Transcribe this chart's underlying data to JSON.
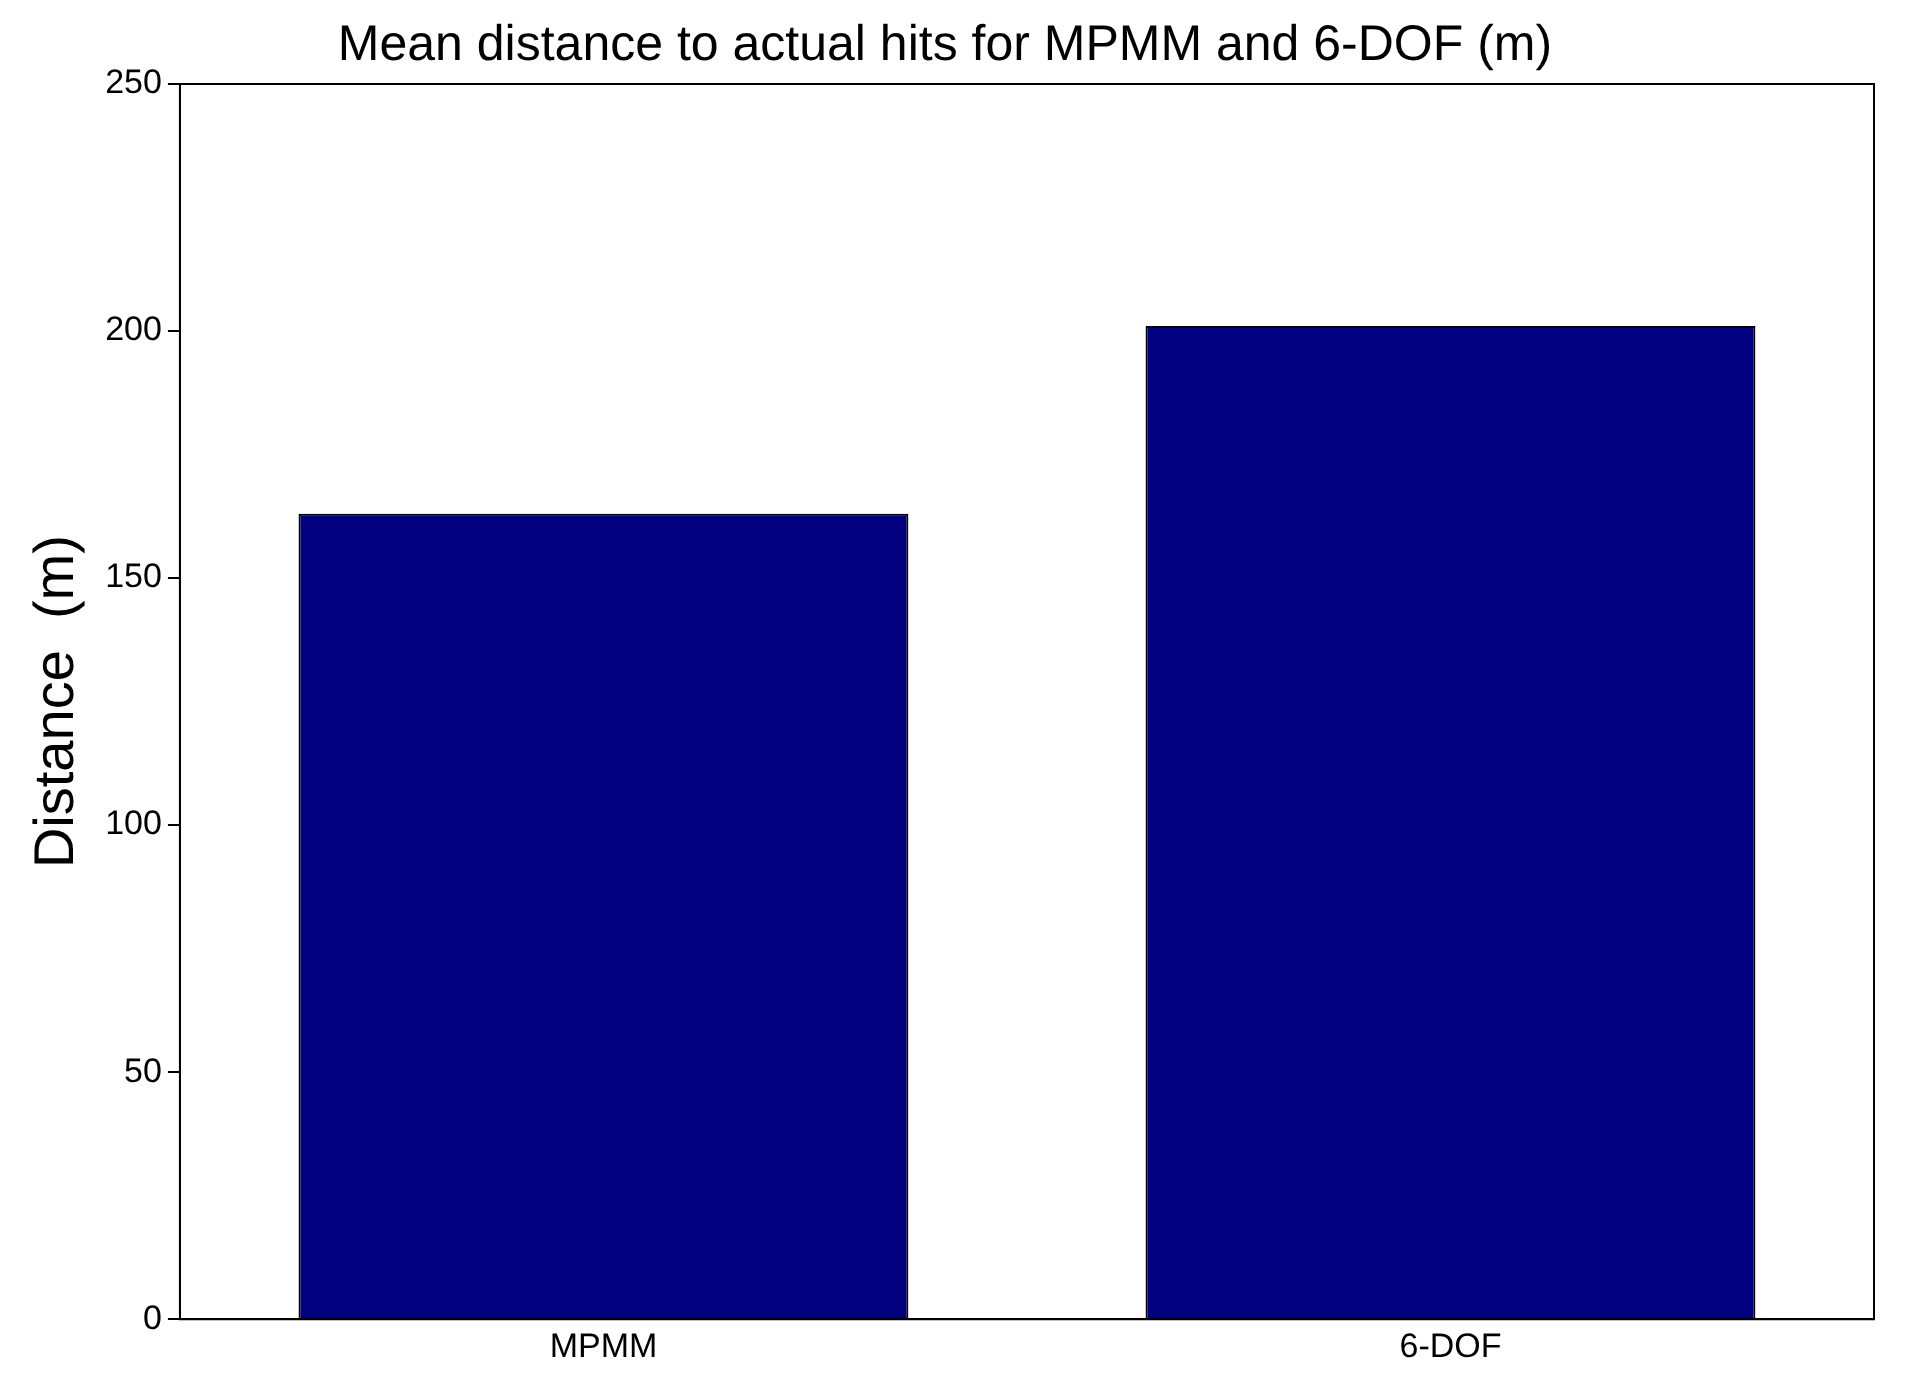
{
  "chart_data": {
    "type": "bar",
    "title": "Mean distance to actual hits for MPMM and 6-DOF (m)",
    "ylabel": "Distance  (m)",
    "categories": [
      "MPMM",
      "6-DOF"
    ],
    "values": [
      163,
      201
    ],
    "color": "#000080",
    "ylim": [
      0,
      250
    ],
    "yticks": [
      0,
      50,
      100,
      150,
      200,
      250
    ],
    "grid": false,
    "legend": false
  }
}
